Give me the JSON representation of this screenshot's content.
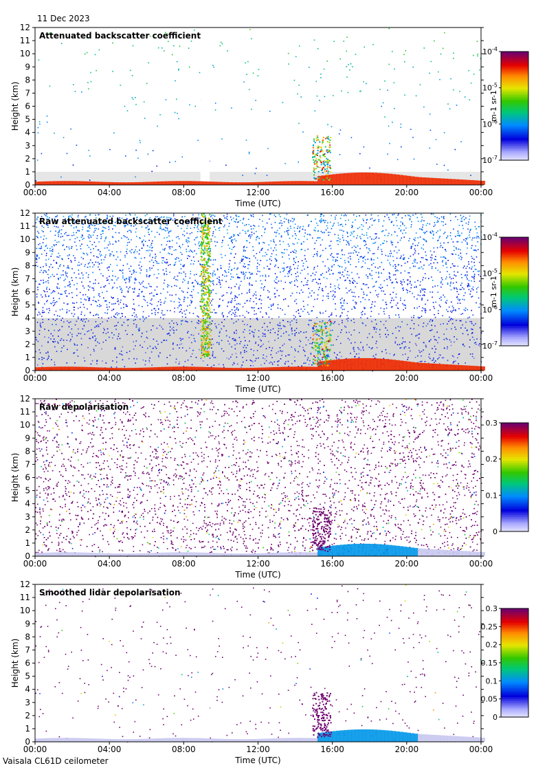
{
  "figure": {
    "date": "11 Dec 2023",
    "footer": "Vaisala CL61D ceilometer"
  },
  "chart_data": [
    {
      "type": "heatmap",
      "title": "Attenuated backscatter coefficient",
      "xlabel": "Time (UTC)",
      "ylabel": "Height (km)",
      "xticks": [
        "00:00",
        "04:00",
        "08:00",
        "12:00",
        "16:00",
        "20:00",
        "00:00"
      ],
      "ylim": [
        0,
        12
      ],
      "yticks": [
        "0",
        "1",
        "2",
        "3",
        "4",
        "5",
        "6",
        "7",
        "8",
        "9",
        "10",
        "11",
        "12"
      ],
      "colorbar": {
        "scale": "log",
        "range": [
          1e-07,
          0.0001
        ],
        "unit": "m-1 sr-1",
        "ticks": [
          {
            "base": "10",
            "exp": "-4"
          },
          {
            "base": "10",
            "exp": "-5"
          },
          {
            "base": "10",
            "exp": "-6"
          },
          {
            "base": "10",
            "exp": "-7"
          }
        ]
      },
      "features": {
        "noise_level": 0.03,
        "gray_floor_km": 1.0,
        "bg_intensity": 0.5,
        "gap": [
          8.9,
          9.4
        ]
      }
    },
    {
      "type": "heatmap",
      "title": "Raw attenuated backscatter coefficient",
      "xlabel": "Time (UTC)",
      "ylabel": "Height (km)",
      "xticks": [
        "00:00",
        "04:00",
        "08:00",
        "12:00",
        "16:00",
        "20:00",
        "00:00"
      ],
      "ylim": [
        0,
        12
      ],
      "yticks": [
        "0",
        "1",
        "2",
        "3",
        "4",
        "5",
        "6",
        "7",
        "8",
        "9",
        "10",
        "11",
        "12"
      ],
      "colorbar": {
        "scale": "log",
        "range": [
          1e-07,
          0.0001
        ],
        "unit": "m-1 sr-1",
        "ticks": [
          {
            "base": "10",
            "exp": "-4"
          },
          {
            "base": "10",
            "exp": "-5"
          },
          {
            "base": "10",
            "exp": "-6"
          },
          {
            "base": "10",
            "exp": "-7"
          }
        ]
      },
      "features": {
        "noise_level": 0.45,
        "gray_floor_km": 4.0,
        "bg_intensity": 0.28,
        "gap": [
          8.9,
          9.4
        ]
      }
    },
    {
      "type": "heatmap",
      "title": "Raw depolarisation",
      "xlabel": "Time (UTC)",
      "ylabel": "Height (km)",
      "xticks": [
        "00:00",
        "04:00",
        "08:00",
        "12:00",
        "16:00",
        "20:00",
        "00:00"
      ],
      "ylim": [
        0,
        12
      ],
      "yticks": [
        "0",
        "1",
        "2",
        "3",
        "4",
        "5",
        "6",
        "7",
        "8",
        "9",
        "10",
        "11",
        "12"
      ],
      "colorbar": {
        "scale": "linear",
        "range": [
          0,
          0.3
        ],
        "unit": "",
        "ticks": [
          {
            "base": "0.3"
          },
          {
            "base": "0.2"
          },
          {
            "base": "0.1"
          },
          {
            "base": "0"
          }
        ]
      },
      "features": {
        "noise_level": 0.55,
        "gray_floor_km": 0,
        "bg_intensity": 0.97,
        "gap": []
      }
    },
    {
      "type": "heatmap",
      "title": "Smoothed lidar depolarisation",
      "xlabel": "Time (UTC)",
      "ylabel": "Height (km)",
      "xticks": [
        "00:00",
        "04:00",
        "08:00",
        "12:00",
        "16:00",
        "20:00",
        "00:00"
      ],
      "ylim": [
        0,
        12
      ],
      "yticks": [
        "0",
        "1",
        "2",
        "3",
        "4",
        "5",
        "6",
        "7",
        "8",
        "9",
        "10",
        "11",
        "12"
      ],
      "colorbar": {
        "scale": "linear",
        "range": [
          0,
          0.3
        ],
        "unit": "",
        "ticks": [
          {
            "base": "0.3"
          },
          {
            "base": "0.25"
          },
          {
            "base": "0.2"
          },
          {
            "base": "0.15"
          },
          {
            "base": "0.1"
          },
          {
            "base": "0.05"
          },
          {
            "base": "0"
          }
        ]
      },
      "features": {
        "noise_level": 0.05,
        "gray_floor_km": 0,
        "bg_intensity": 0.97,
        "gap": [
          8.9,
          9.4
        ]
      }
    }
  ]
}
